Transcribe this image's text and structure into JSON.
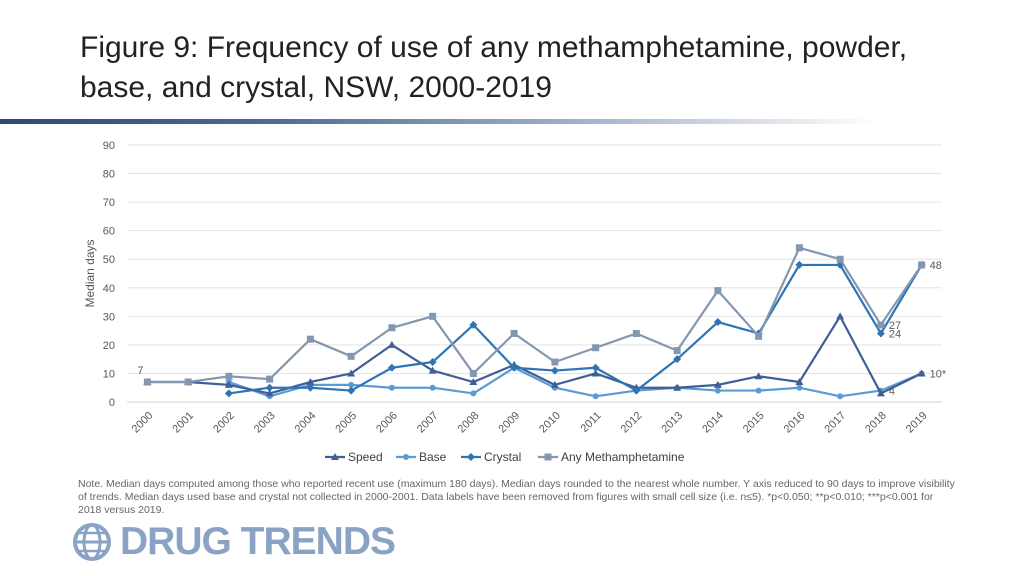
{
  "title": "Figure 9: Frequency of use of any methamphetamine, powder, base, and crystal, NSW, 2000-2019",
  "note": "Note. Median days computed among those who reported recent use (maximum 180 days). Median days rounded to the nearest whole number. Y axis reduced to 90 days to improve visibility of trends. Median days used base and crystal not collected in 2000-2001. Data labels have been removed from figures with small cell size (i.e. n≤5).  *p<0.050; **p<0.010; ***p<0.001 for 2018 versus 2019.",
  "logo": {
    "text": "DRUG TRENDS",
    "icon": "globe-icon"
  },
  "chart_data": {
    "type": "line",
    "ylabel": "Median days",
    "xlabel": "",
    "ylim": [
      0,
      90
    ],
    "yticks": [
      0,
      10,
      20,
      30,
      40,
      50,
      60,
      70,
      80,
      90
    ],
    "grid": true,
    "legend_position": "bottom",
    "categories": [
      "2000",
      "2001",
      "2002",
      "2003",
      "2004",
      "2005",
      "2006",
      "2007",
      "2008",
      "2009",
      "2010",
      "2011",
      "2012",
      "2013",
      "2014",
      "2015",
      "2016",
      "2017",
      "2018",
      "2019"
    ],
    "series": [
      {
        "name": "Speed",
        "color": "#3f5f95",
        "marker": "triangle",
        "values": [
          7,
          7,
          6,
          3,
          7,
          10,
          20,
          11,
          7,
          13,
          6,
          10,
          5,
          5,
          6,
          9,
          7,
          30,
          3,
          10
        ]
      },
      {
        "name": "Base",
        "color": "#5b9bd5",
        "marker": "circle",
        "values": [
          null,
          null,
          7,
          2,
          6,
          6,
          5,
          5,
          3,
          12,
          5,
          2,
          4,
          5,
          4,
          4,
          5,
          2,
          4,
          10
        ]
      },
      {
        "name": "Crystal",
        "color": "#2e75b6",
        "marker": "diamond",
        "values": [
          null,
          null,
          3,
          5,
          5,
          4,
          12,
          14,
          27,
          12,
          11,
          12,
          4,
          15,
          28,
          24,
          48,
          48,
          24,
          48
        ]
      },
      {
        "name": "Any Methamphetamine",
        "color": "#8497b0",
        "marker": "square",
        "values": [
          7,
          7,
          9,
          8,
          22,
          16,
          26,
          30,
          10,
          24,
          14,
          19,
          24,
          18,
          39,
          23,
          54,
          50,
          27,
          48
        ]
      }
    ],
    "data_labels": [
      {
        "x": "2000",
        "y": 7,
        "text": "7"
      },
      {
        "x": "2019",
        "y": 48,
        "text": "48"
      },
      {
        "x": "2018",
        "y": 27,
        "text": "27"
      },
      {
        "x": "2018",
        "y": 24,
        "text": "24"
      },
      {
        "x": "2019",
        "y": 10,
        "text": "10*"
      },
      {
        "x": "2018",
        "y": 4,
        "text": "4"
      }
    ]
  }
}
